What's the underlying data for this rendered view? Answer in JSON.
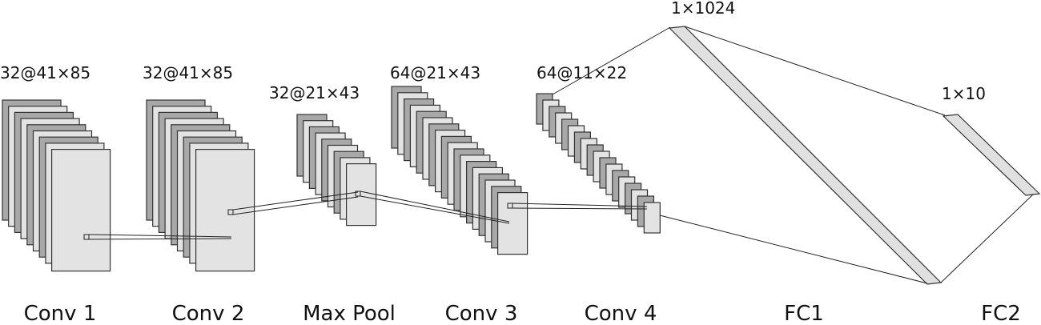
{
  "colors": {
    "map_dark": "#a8a8a8",
    "map_light": "#e3e3e3",
    "map_stroke": "#333333",
    "fc_fill": "#e0e0e0",
    "link": "#222222",
    "text": "#111111"
  },
  "layers": [
    {
      "id": "conv1",
      "name": "Conv 1",
      "dims": "32@41×85",
      "maps_drawn": 9
    },
    {
      "id": "conv2",
      "name": "Conv 2",
      "dims": "32@41×85",
      "maps_drawn": 9
    },
    {
      "id": "maxpool",
      "name": "Max Pool",
      "dims": "32@21×43",
      "maps_drawn": 9
    },
    {
      "id": "conv3",
      "name": "Conv 3",
      "dims": "64@21×43",
      "maps_drawn": 18
    },
    {
      "id": "conv4",
      "name": "Conv 4",
      "dims": "64@11×22",
      "maps_drawn": 18
    },
    {
      "id": "fc1",
      "name": "FC1",
      "dims": "1×1024"
    },
    {
      "id": "fc2",
      "name": "FC2",
      "dims": "1×10"
    }
  ]
}
